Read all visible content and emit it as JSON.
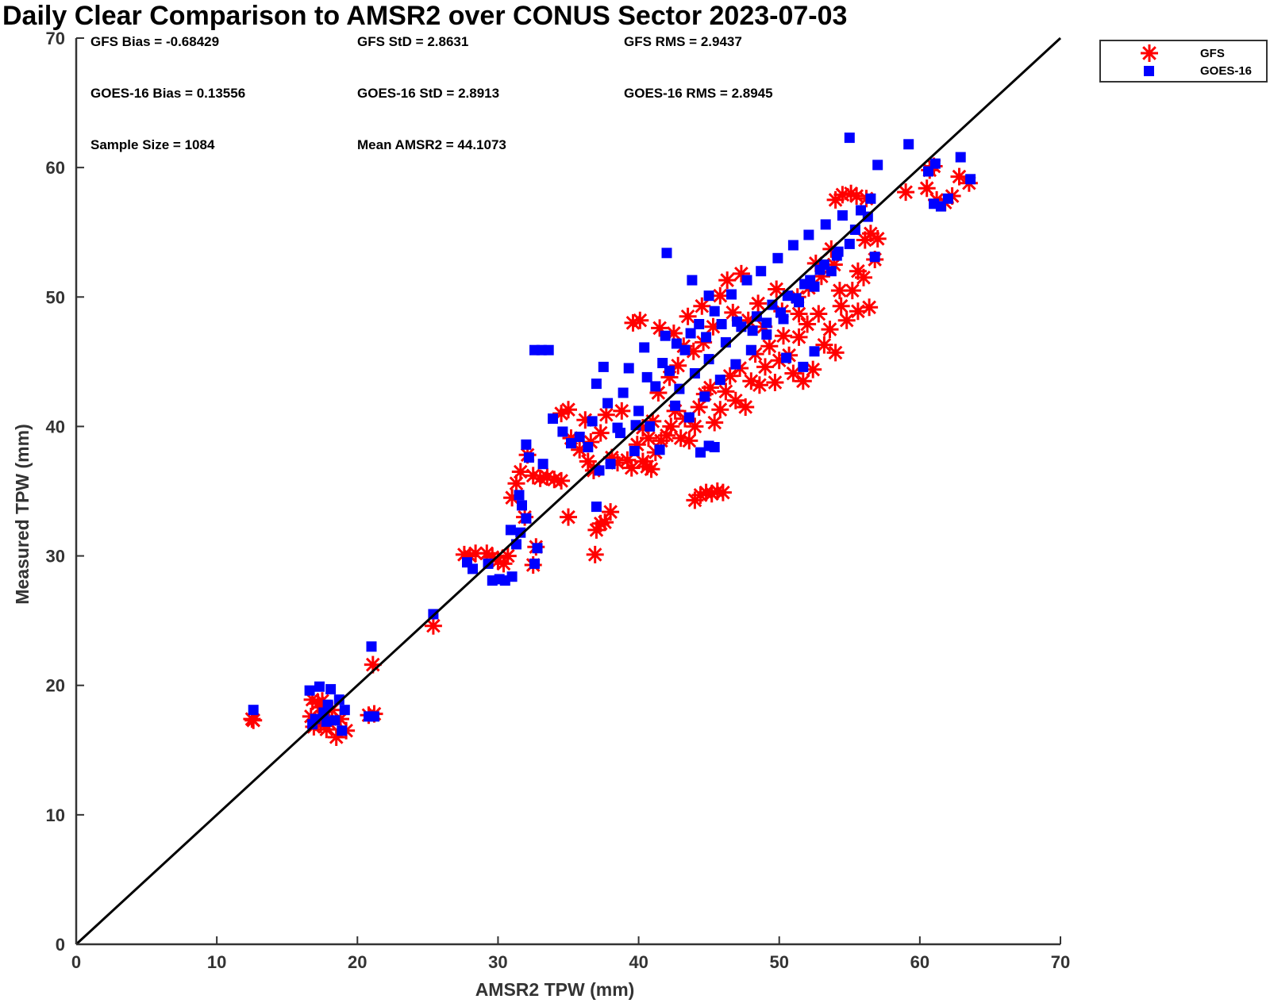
{
  "chart_data": {
    "type": "scatter",
    "title": "Daily Clear Comparison to AMSR2 over CONUS Sector 2023-07-03",
    "xlabel": "AMSR2 TPW (mm)",
    "ylabel": "Measured TPW (mm)",
    "xlim": [
      0,
      70
    ],
    "ylim": [
      0,
      70
    ],
    "xticks": [
      0,
      10,
      20,
      30,
      40,
      50,
      60,
      70
    ],
    "yticks": [
      0,
      10,
      20,
      30,
      40,
      50,
      60,
      70
    ],
    "grid": false,
    "legend_position": "top-right (outside plot)",
    "reference_line": "1:1",
    "stats": [
      {
        "text": "GFS Bias = -0.68429"
      },
      {
        "text": "GFS StD = 2.8631"
      },
      {
        "text": "GFS RMS = 2.9437"
      },
      {
        "text": "GOES-16 Bias = 0.13556"
      },
      {
        "text": "GOES-16 StD = 2.8913"
      },
      {
        "text": "GOES-16 RMS = 2.8945"
      },
      {
        "text": "Sample Size = 1084"
      },
      {
        "text": "Mean AMSR2 = 44.1073"
      }
    ],
    "series": [
      {
        "name": "GFS",
        "marker": "asterisk",
        "color": "#ff0000",
        "points": [
          [
            12.5,
            17.4
          ],
          [
            12.6,
            17.3
          ],
          [
            16.8,
            18.9
          ],
          [
            16.9,
            16.8
          ],
          [
            17.0,
            17.3
          ],
          [
            17.2,
            18.6
          ],
          [
            17.4,
            17.0
          ],
          [
            17.6,
            18.3
          ],
          [
            17.8,
            16.6
          ],
          [
            18.0,
            17.1
          ],
          [
            18.2,
            18.1
          ],
          [
            18.5,
            16.0
          ],
          [
            18.8,
            17.4
          ],
          [
            19.2,
            16.5
          ],
          [
            16.7,
            17.6
          ],
          [
            17.5,
            18.8
          ],
          [
            20.8,
            17.7
          ],
          [
            21.2,
            17.8
          ],
          [
            21.1,
            21.6
          ],
          [
            25.4,
            24.6
          ],
          [
            27.6,
            30.1
          ],
          [
            28.0,
            30.0
          ],
          [
            28.4,
            30.2
          ],
          [
            29.2,
            30.2
          ],
          [
            29.6,
            29.9
          ],
          [
            30.0,
            29.6
          ],
          [
            30.4,
            29.4
          ],
          [
            30.7,
            30.0
          ],
          [
            32.5,
            29.3
          ],
          [
            32.7,
            30.7
          ],
          [
            31.0,
            34.5
          ],
          [
            31.3,
            35.6
          ],
          [
            31.6,
            36.5
          ],
          [
            31.9,
            33.0
          ],
          [
            32.1,
            37.8
          ],
          [
            32.5,
            36.2
          ],
          [
            33.0,
            36.0
          ],
          [
            33.5,
            36.1
          ],
          [
            34.0,
            35.9
          ],
          [
            34.5,
            35.8
          ],
          [
            35.0,
            33.0
          ],
          [
            34.5,
            41.0
          ],
          [
            35.0,
            41.3
          ],
          [
            35.2,
            39.1
          ],
          [
            35.8,
            38.2
          ],
          [
            36.4,
            37.3
          ],
          [
            36.8,
            36.6
          ],
          [
            37.0,
            32.0
          ],
          [
            37.3,
            32.5
          ],
          [
            37.6,
            32.6
          ],
          [
            38.0,
            33.4
          ],
          [
            36.9,
            30.1
          ],
          [
            36.2,
            40.5
          ],
          [
            36.6,
            38.8
          ],
          [
            37.3,
            39.5
          ],
          [
            37.7,
            40.9
          ],
          [
            38.1,
            37.6
          ],
          [
            38.5,
            37.2
          ],
          [
            38.8,
            41.2
          ],
          [
            39.2,
            37.4
          ],
          [
            39.5,
            36.8
          ],
          [
            39.9,
            38.6
          ],
          [
            40.3,
            37.3
          ],
          [
            40.6,
            36.9
          ],
          [
            40.9,
            36.7
          ],
          [
            40.3,
            39.9
          ],
          [
            40.7,
            39.1
          ],
          [
            41.0,
            40.4
          ],
          [
            41.2,
            38.0
          ],
          [
            41.6,
            38.9
          ],
          [
            42.0,
            39.3
          ],
          [
            42.3,
            40.0
          ],
          [
            42.6,
            41.2
          ],
          [
            43.0,
            39.1
          ],
          [
            43.3,
            40.6
          ],
          [
            43.6,
            38.9
          ],
          [
            44.0,
            40.0
          ],
          [
            44.3,
            41.5
          ],
          [
            44.7,
            42.5
          ],
          [
            45.1,
            43.0
          ],
          [
            45.4,
            40.3
          ],
          [
            45.8,
            41.3
          ],
          [
            46.2,
            42.7
          ],
          [
            46.5,
            43.9
          ],
          [
            46.9,
            42.0
          ],
          [
            47.2,
            44.5
          ],
          [
            47.6,
            41.5
          ],
          [
            48.0,
            43.5
          ],
          [
            48.3,
            45.6
          ],
          [
            48.6,
            43.2
          ],
          [
            49.0,
            44.6
          ],
          [
            49.3,
            46.2
          ],
          [
            49.7,
            43.4
          ],
          [
            50.0,
            45.1
          ],
          [
            50.3,
            47.0
          ],
          [
            50.7,
            45.5
          ],
          [
            51.0,
            44.1
          ],
          [
            51.4,
            46.9
          ],
          [
            51.7,
            43.5
          ],
          [
            52.0,
            47.9
          ],
          [
            52.4,
            44.4
          ],
          [
            52.8,
            48.7
          ],
          [
            53.2,
            46.3
          ],
          [
            53.6,
            47.5
          ],
          [
            54.0,
            45.7
          ],
          [
            54.4,
            49.3
          ],
          [
            54.8,
            48.2
          ],
          [
            55.2,
            50.5
          ],
          [
            55.6,
            48.9
          ],
          [
            56.0,
            51.5
          ],
          [
            56.4,
            49.2
          ],
          [
            56.8,
            52.9
          ],
          [
            57.0,
            54.5
          ],
          [
            56.5,
            54.9
          ],
          [
            56.1,
            54.4
          ],
          [
            54.0,
            57.5
          ],
          [
            54.5,
            57.9
          ],
          [
            55.1,
            58.0
          ],
          [
            55.5,
            57.8
          ],
          [
            56.2,
            57.6
          ],
          [
            44.0,
            34.3
          ],
          [
            44.4,
            34.7
          ],
          [
            44.8,
            34.9
          ],
          [
            45.2,
            34.8
          ],
          [
            45.6,
            35.0
          ],
          [
            46.0,
            34.9
          ],
          [
            39.6,
            48.0
          ],
          [
            40.1,
            48.2
          ],
          [
            41.5,
            47.6
          ],
          [
            42.5,
            47.2
          ],
          [
            43.5,
            48.5
          ],
          [
            44.5,
            49.3
          ],
          [
            45.8,
            50.1
          ],
          [
            46.3,
            51.3
          ],
          [
            47.3,
            51.8
          ],
          [
            48.5,
            49.5
          ],
          [
            49.8,
            50.6
          ],
          [
            51.4,
            48.7
          ],
          [
            52.6,
            52.6
          ],
          [
            53.7,
            53.7
          ],
          [
            54.3,
            50.5
          ],
          [
            41.4,
            42.6
          ],
          [
            42.2,
            43.8
          ],
          [
            42.8,
            44.7
          ],
          [
            43.2,
            46.2
          ],
          [
            43.9,
            45.8
          ],
          [
            44.6,
            46.5
          ],
          [
            45.3,
            47.7
          ],
          [
            46.7,
            48.8
          ],
          [
            47.8,
            48.2
          ],
          [
            48.9,
            47.7
          ],
          [
            50.2,
            48.9
          ],
          [
            51.3,
            50.0
          ],
          [
            52.1,
            50.7
          ],
          [
            53.0,
            51.6
          ],
          [
            53.9,
            52.5
          ],
          [
            55.6,
            52.0
          ],
          [
            59.0,
            58.1
          ],
          [
            60.5,
            58.4
          ],
          [
            60.7,
            59.8
          ],
          [
            61.2,
            57.5
          ],
          [
            61.8,
            57.3
          ],
          [
            62.3,
            57.8
          ],
          [
            62.8,
            59.3
          ],
          [
            63.5,
            58.8
          ],
          [
            61.0,
            60.1
          ]
        ]
      },
      {
        "name": "GOES-16",
        "marker": "square",
        "color": "#0000ff",
        "points": [
          [
            12.6,
            18.1
          ],
          [
            16.6,
            19.6
          ],
          [
            17.0,
            17.4
          ],
          [
            17.3,
            19.9
          ],
          [
            17.6,
            17.9
          ],
          [
            17.9,
            18.5
          ],
          [
            18.1,
            19.7
          ],
          [
            18.4,
            17.3
          ],
          [
            18.7,
            18.9
          ],
          [
            18.9,
            16.5
          ],
          [
            19.1,
            18.1
          ],
          [
            16.8,
            17.0
          ],
          [
            17.8,
            17.2
          ],
          [
            20.8,
            17.6
          ],
          [
            21.2,
            17.6
          ],
          [
            21.0,
            23.0
          ],
          [
            25.4,
            25.5
          ],
          [
            27.8,
            29.5
          ],
          [
            28.2,
            29.0
          ],
          [
            29.3,
            29.4
          ],
          [
            29.6,
            28.1
          ],
          [
            30.1,
            28.2
          ],
          [
            30.5,
            28.1
          ],
          [
            31.0,
            28.4
          ],
          [
            31.3,
            30.9
          ],
          [
            31.6,
            31.8
          ],
          [
            32.0,
            32.9
          ],
          [
            32.6,
            29.4
          ],
          [
            32.8,
            30.6
          ],
          [
            30.9,
            32.0
          ],
          [
            31.5,
            34.7
          ],
          [
            31.7,
            33.9
          ],
          [
            32.2,
            37.6
          ],
          [
            32.6,
            45.9
          ],
          [
            33.1,
            45.9
          ],
          [
            33.6,
            45.9
          ],
          [
            32.0,
            38.6
          ],
          [
            33.2,
            37.1
          ],
          [
            33.9,
            40.6
          ],
          [
            34.6,
            39.6
          ],
          [
            35.2,
            38.7
          ],
          [
            35.8,
            39.2
          ],
          [
            36.4,
            38.4
          ],
          [
            37.0,
            43.3
          ],
          [
            37.5,
            44.6
          ],
          [
            37.2,
            36.6
          ],
          [
            37.0,
            33.8
          ],
          [
            38.0,
            37.1
          ],
          [
            38.5,
            39.9
          ],
          [
            38.9,
            42.6
          ],
          [
            39.3,
            44.5
          ],
          [
            39.7,
            38.1
          ],
          [
            40.0,
            41.2
          ],
          [
            40.4,
            46.1
          ],
          [
            40.8,
            40.0
          ],
          [
            41.2,
            43.1
          ],
          [
            41.5,
            38.2
          ],
          [
            41.9,
            47.0
          ],
          [
            42.2,
            44.3
          ],
          [
            42.6,
            41.6
          ],
          [
            42.9,
            42.9
          ],
          [
            43.3,
            45.9
          ],
          [
            43.6,
            40.7
          ],
          [
            44.0,
            44.1
          ],
          [
            44.3,
            47.9
          ],
          [
            44.7,
            42.3
          ],
          [
            45.0,
            45.2
          ],
          [
            45.4,
            48.9
          ],
          [
            45.8,
            43.6
          ],
          [
            46.2,
            46.5
          ],
          [
            46.6,
            50.2
          ],
          [
            46.9,
            44.8
          ],
          [
            47.3,
            47.7
          ],
          [
            47.7,
            51.3
          ],
          [
            48.0,
            45.9
          ],
          [
            48.4,
            48.5
          ],
          [
            48.7,
            52.0
          ],
          [
            49.1,
            47.1
          ],
          [
            49.5,
            49.4
          ],
          [
            49.9,
            53.0
          ],
          [
            50.3,
            48.3
          ],
          [
            50.6,
            50.1
          ],
          [
            51.0,
            54.0
          ],
          [
            51.4,
            49.6
          ],
          [
            51.8,
            51.0
          ],
          [
            52.1,
            54.8
          ],
          [
            52.5,
            50.8
          ],
          [
            52.9,
            52.1
          ],
          [
            53.3,
            55.6
          ],
          [
            53.7,
            52.0
          ],
          [
            54.1,
            53.2
          ],
          [
            54.5,
            56.3
          ],
          [
            55.0,
            54.1
          ],
          [
            55.4,
            55.2
          ],
          [
            55.8,
            56.7
          ],
          [
            56.3,
            56.2
          ],
          [
            56.8,
            53.1
          ],
          [
            56.5,
            57.6
          ],
          [
            55.0,
            62.3
          ],
          [
            57.0,
            60.2
          ],
          [
            42.0,
            53.4
          ],
          [
            43.8,
            51.3
          ],
          [
            45.0,
            50.1
          ],
          [
            36.7,
            40.4
          ],
          [
            37.8,
            41.8
          ],
          [
            38.7,
            39.5
          ],
          [
            39.8,
            40.1
          ],
          [
            40.6,
            43.8
          ],
          [
            41.7,
            44.9
          ],
          [
            42.7,
            46.4
          ],
          [
            43.7,
            47.2
          ],
          [
            44.8,
            46.9
          ],
          [
            45.9,
            47.9
          ],
          [
            47.0,
            48.1
          ],
          [
            48.1,
            47.4
          ],
          [
            49.1,
            48.0
          ],
          [
            50.1,
            48.8
          ],
          [
            51.2,
            49.9
          ],
          [
            52.2,
            51.3
          ],
          [
            53.2,
            52.5
          ],
          [
            54.2,
            53.5
          ],
          [
            44.4,
            38.0
          ],
          [
            45.0,
            38.5
          ],
          [
            45.4,
            38.4
          ],
          [
            50.5,
            45.3
          ],
          [
            51.7,
            44.6
          ],
          [
            52.5,
            45.8
          ],
          [
            59.2,
            61.8
          ],
          [
            60.6,
            59.7
          ],
          [
            61.1,
            60.3
          ],
          [
            61.0,
            57.2
          ],
          [
            61.5,
            57.0
          ],
          [
            62.0,
            57.6
          ],
          [
            62.9,
            60.8
          ],
          [
            63.6,
            59.1
          ]
        ]
      }
    ]
  }
}
